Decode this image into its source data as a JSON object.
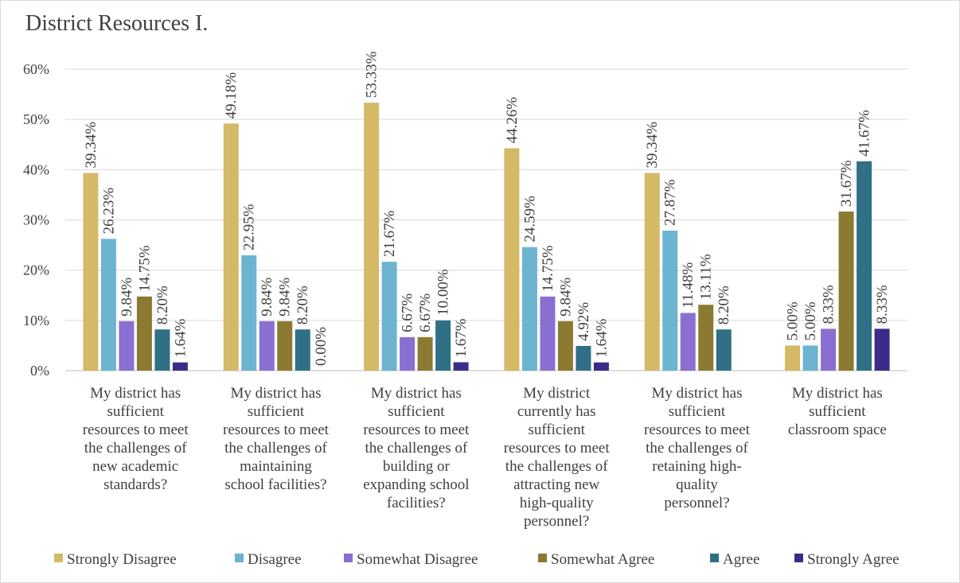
{
  "chart_data": {
    "type": "bar",
    "title": "District Resources I.",
    "xlabel": "",
    "ylabel": "",
    "ylim": [
      0,
      60
    ],
    "y_ticks": [
      "0%",
      "10%",
      "20%",
      "30%",
      "40%",
      "50%",
      "60%"
    ],
    "grid": true,
    "legend_position": "bottom",
    "categories": [
      "My district has sufficient resources to meet the challenges of new academic standards?",
      "My district has sufficient resources to meet the challenges of maintaining school facilities?",
      "My district has sufficient resources to meet the challenges of building or expanding school facilities?",
      "My district currently has sufficient resources to meet the challenges of attracting new high-quality personnel?",
      "My district has sufficient resources to meet the challenges of retaining high-quality personnel?",
      "My district has sufficient classroom space"
    ],
    "category_lines": [
      [
        "My district has",
        "sufficient",
        "resources to meet",
        "the challenges of",
        "new academic",
        "standards?"
      ],
      [
        "My district has",
        "sufficient",
        "resources to meet",
        "the challenges of",
        "maintaining",
        "school facilities?"
      ],
      [
        "My district has",
        "sufficient",
        "resources to meet",
        "the challenges of",
        "building or",
        "expanding school",
        "facilities?"
      ],
      [
        "My district",
        "currently has",
        "sufficient",
        "resources to meet",
        "the challenges of",
        "attracting new",
        "high-quality",
        "personnel?"
      ],
      [
        "My district has",
        "sufficient",
        "resources to meet",
        "the challenges of",
        "retaining high-",
        "quality",
        "personnel?"
      ],
      [
        "My district has",
        "sufficient",
        "classroom space"
      ]
    ],
    "series": [
      {
        "name": "Strongly Disagree",
        "color": "#d4b966",
        "values": [
          39.34,
          49.18,
          53.33,
          44.26,
          39.34,
          5.0
        ],
        "labels": [
          "39.34%",
          "49.18%",
          "53.33%",
          "44.26%",
          "39.34%",
          "5.00%"
        ]
      },
      {
        "name": "Disagree",
        "color": "#6cb4d0",
        "values": [
          26.23,
          22.95,
          21.67,
          24.59,
          27.87,
          5.0
        ],
        "labels": [
          "26.23%",
          "22.95%",
          "21.67%",
          "24.59%",
          "27.87%",
          "5.00%"
        ]
      },
      {
        "name": "Somewhat Disagree",
        "color": "#8a6fd2",
        "values": [
          9.84,
          9.84,
          6.67,
          14.75,
          11.48,
          8.33
        ],
        "labels": [
          "9.84%",
          "9.84%",
          "6.67%",
          "14.75%",
          "11.48%",
          "8.33%"
        ]
      },
      {
        "name": "Somewhat Agree",
        "color": "#8c7a32",
        "values": [
          14.75,
          9.84,
          6.67,
          9.84,
          13.11,
          31.67
        ],
        "labels": [
          "14.75%",
          "9.84%",
          "6.67%",
          "9.84%",
          "13.11%",
          "31.67%"
        ]
      },
      {
        "name": "Agree",
        "color": "#2f7086",
        "values": [
          8.2,
          8.2,
          10.0,
          4.92,
          8.2,
          41.67
        ],
        "labels": [
          "8.20%",
          "8.20%",
          "10.00%",
          "4.92%",
          "8.20%",
          "41.67%"
        ]
      },
      {
        "name": "Strongly Agree",
        "color": "#3c2c8a",
        "values": [
          1.64,
          0.0,
          1.67,
          1.64,
          null,
          8.33
        ],
        "labels": [
          "1.64%",
          "0.00%",
          "1.67%",
          "1.64%",
          null,
          "8.33%"
        ]
      }
    ]
  }
}
